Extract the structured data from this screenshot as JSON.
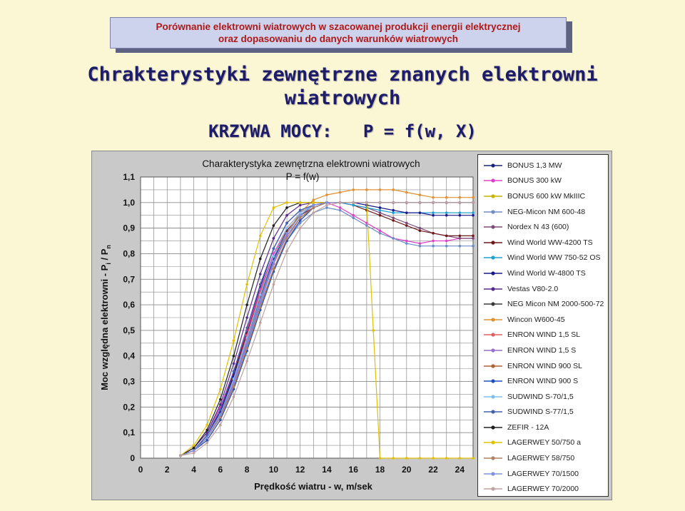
{
  "banner": {
    "line1": "Porównanie elektrowni wiatrowych w szacowanej produkcji energii elektrycznej",
    "line2": "oraz dopasowaniu do danych warunków wiatrowych"
  },
  "heading": {
    "line1": "Chrakterystyki zewnętrzne znanych elektrowni",
    "line2": "wiatrowych"
  },
  "formula": "KRZYWA MOCY:   P = f(w, X)",
  "chart_data": {
    "type": "line",
    "title": "Charakterystyka zewnętrzna elektrowni wiatrowych",
    "subtitle": "P = f(w)",
    "xlabel": "Prędkość wiatru  -  w,    m/sek",
    "ylabel": "Moc względna elektrowni   -   P",
    "ylabel_sub": "i",
    "ylabel_tail": " / P",
    "ylabel_sub2": "n",
    "xlim": [
      0,
      25
    ],
    "ylim": [
      0,
      1.1
    ],
    "xticks": [
      "0",
      "2",
      "4",
      "6",
      "8",
      "10",
      "12",
      "14",
      "16",
      "18",
      "20",
      "22",
      "24"
    ],
    "yticks": [
      "0",
      "0,1",
      "0,2",
      "0,3",
      "0,4",
      "0,5",
      "0,6",
      "0,7",
      "0,8",
      "0,9",
      "1,0",
      "1,1"
    ],
    "grid": true,
    "legend_position": "right",
    "series": [
      {
        "name": "BONUS 1,3 MW",
        "color": "#1a237e",
        "x": [
          3,
          4,
          5,
          6,
          7,
          8,
          9,
          10,
          11,
          12,
          13,
          14,
          15,
          16,
          17,
          18,
          19,
          20,
          21,
          22,
          23,
          24,
          25
        ],
        "y": [
          0.01,
          0.03,
          0.09,
          0.19,
          0.33,
          0.5,
          0.67,
          0.82,
          0.92,
          0.97,
          0.99,
          1.0,
          1.0,
          1.0,
          1.0,
          1.0,
          1.0,
          1.0,
          1.0,
          1.0,
          1.0,
          1.0,
          1.0
        ]
      },
      {
        "name": "BONUS 300 kW",
        "color": "#e040c8",
        "x": [
          3,
          4,
          5,
          6,
          7,
          8,
          9,
          10,
          11,
          12,
          13,
          14,
          15,
          16,
          17,
          18,
          19,
          20,
          21,
          22,
          23,
          24,
          25
        ],
        "y": [
          0.01,
          0.04,
          0.1,
          0.2,
          0.34,
          0.5,
          0.66,
          0.8,
          0.9,
          0.96,
          0.99,
          1.0,
          0.98,
          0.95,
          0.92,
          0.89,
          0.86,
          0.85,
          0.84,
          0.85,
          0.85,
          0.86,
          0.86
        ]
      },
      {
        "name": "BONUS 600 kW MkIIIC",
        "color": "#c8b400",
        "x": [
          3,
          4,
          5,
          6,
          7,
          8,
          9,
          10,
          11,
          12,
          13,
          14,
          15,
          16,
          17,
          18,
          19,
          20,
          21,
          22,
          23,
          24,
          25
        ],
        "y": [
          0.01,
          0.03,
          0.08,
          0.17,
          0.3,
          0.46,
          0.62,
          0.76,
          0.87,
          0.94,
          0.98,
          1.0,
          1.0,
          1.0,
          1.0,
          1.0,
          1.0,
          1.0,
          1.0,
          1.0,
          1.0,
          1.0,
          1.0
        ]
      },
      {
        "name": "NEG-Micon NM 600-48",
        "color": "#6a8cc8",
        "x": [
          3,
          4,
          5,
          6,
          7,
          8,
          9,
          10,
          11,
          12,
          13,
          14,
          15,
          16,
          17,
          18,
          19,
          20,
          21,
          22,
          23,
          24,
          25
        ],
        "y": [
          0.01,
          0.03,
          0.08,
          0.16,
          0.29,
          0.44,
          0.6,
          0.74,
          0.85,
          0.92,
          0.96,
          0.98,
          0.97,
          0.94,
          0.91,
          0.88,
          0.86,
          0.84,
          0.83,
          0.83,
          0.83,
          0.83,
          0.83
        ]
      },
      {
        "name": "Nordex N 43 (600)",
        "color": "#7a4a7a",
        "x": [
          3,
          4,
          5,
          6,
          7,
          8,
          9,
          10,
          11,
          12,
          13,
          14,
          15,
          16,
          17,
          18,
          19,
          20,
          21,
          22,
          23,
          24,
          25
        ],
        "y": [
          0.01,
          0.03,
          0.08,
          0.17,
          0.31,
          0.47,
          0.63,
          0.77,
          0.88,
          0.95,
          0.99,
          1.0,
          1.0,
          0.99,
          0.98,
          0.96,
          0.94,
          0.92,
          0.9,
          0.88,
          0.87,
          0.86,
          0.86
        ]
      },
      {
        "name": "Wind World WW-4200 TS",
        "color": "#6e1a1a",
        "x": [
          3,
          4,
          5,
          6,
          7,
          8,
          9,
          10,
          11,
          12,
          13,
          14,
          15,
          16,
          17,
          18,
          19,
          20,
          21,
          22,
          23,
          24,
          25
        ],
        "y": [
          0.01,
          0.03,
          0.09,
          0.19,
          0.33,
          0.49,
          0.65,
          0.79,
          0.89,
          0.95,
          0.98,
          1.0,
          1.0,
          0.99,
          0.97,
          0.95,
          0.93,
          0.91,
          0.89,
          0.88,
          0.87,
          0.87,
          0.87
        ]
      },
      {
        "name": "Wind World WW 750-52 OS",
        "color": "#20a0d0",
        "x": [
          3,
          4,
          5,
          6,
          7,
          8,
          9,
          10,
          11,
          12,
          13,
          14,
          15,
          16,
          17,
          18,
          19,
          20,
          21,
          22,
          23,
          24,
          25
        ],
        "y": [
          0.01,
          0.03,
          0.08,
          0.17,
          0.3,
          0.46,
          0.62,
          0.76,
          0.87,
          0.94,
          0.98,
          1.0,
          1.0,
          0.99,
          0.98,
          0.97,
          0.96,
          0.96,
          0.96,
          0.96,
          0.96,
          0.96,
          0.96
        ]
      },
      {
        "name": "Wind World W-4800 TS",
        "color": "#1a1a8c",
        "x": [
          3,
          4,
          5,
          6,
          7,
          8,
          9,
          10,
          11,
          12,
          13,
          14,
          15,
          16,
          17,
          18,
          19,
          20,
          21,
          22,
          23,
          24,
          25
        ],
        "y": [
          0.01,
          0.03,
          0.09,
          0.18,
          0.32,
          0.48,
          0.64,
          0.78,
          0.88,
          0.95,
          0.99,
          1.0,
          1.0,
          1.0,
          0.99,
          0.98,
          0.97,
          0.96,
          0.96,
          0.95,
          0.95,
          0.95,
          0.95
        ]
      },
      {
        "name": "Vestas V80-2.0",
        "color": "#5a2a8a",
        "x": [
          3,
          4,
          5,
          6,
          7,
          8,
          9,
          10,
          11,
          12,
          13,
          14,
          15,
          16,
          17,
          18,
          19,
          20,
          21,
          22,
          23,
          24,
          25
        ],
        "y": [
          0.01,
          0.04,
          0.1,
          0.21,
          0.37,
          0.55,
          0.72,
          0.86,
          0.95,
          0.99,
          1.0,
          1.0,
          1.0,
          1.0,
          1.0,
          1.0,
          1.0,
          1.0,
          1.0,
          1.0,
          1.0,
          1.0,
          1.0
        ]
      },
      {
        "name": "NEG Micon NM 2000-500-72",
        "color": "#3a3a3a",
        "x": [
          3,
          4,
          5,
          6,
          7,
          8,
          9,
          10,
          11,
          12,
          13,
          14,
          15,
          16,
          17,
          18,
          19,
          20,
          21,
          22,
          23,
          24,
          25
        ],
        "y": [
          0.01,
          0.03,
          0.08,
          0.17,
          0.3,
          0.46,
          0.62,
          0.77,
          0.88,
          0.95,
          0.99,
          1.0,
          1.0,
          1.0,
          1.0,
          1.0,
          1.0,
          1.0,
          1.0,
          1.0,
          1.0,
          1.0,
          1.0
        ]
      },
      {
        "name": "Wincon W600-45",
        "color": "#e09030",
        "x": [
          3,
          4,
          5,
          6,
          7,
          8,
          9,
          10,
          11,
          12,
          13,
          14,
          15,
          16,
          17,
          18,
          19,
          20,
          21,
          22,
          23,
          24,
          25
        ],
        "y": [
          0.01,
          0.03,
          0.08,
          0.16,
          0.29,
          0.45,
          0.61,
          0.76,
          0.88,
          0.96,
          1.01,
          1.03,
          1.04,
          1.05,
          1.05,
          1.05,
          1.05,
          1.04,
          1.03,
          1.02,
          1.02,
          1.02,
          1.02
        ]
      },
      {
        "name": "ENRON WIND 1,5 SL",
        "color": "#e06060",
        "x": [
          3,
          4,
          5,
          6,
          7,
          8,
          9,
          10,
          11,
          12,
          13,
          14,
          15,
          16,
          17,
          18,
          19,
          20,
          21,
          22,
          23,
          24,
          25
        ],
        "y": [
          0.01,
          0.03,
          0.08,
          0.17,
          0.31,
          0.48,
          0.65,
          0.79,
          0.9,
          0.96,
          0.99,
          1.0,
          1.0,
          1.0,
          1.0,
          1.0,
          1.0,
          1.0,
          1.0,
          1.0,
          1.0,
          1.0,
          1.0
        ]
      },
      {
        "name": "ENRON WIND 1,5 S",
        "color": "#9a70d0",
        "x": [
          3,
          4,
          5,
          6,
          7,
          8,
          9,
          10,
          11,
          12,
          13,
          14,
          15,
          16,
          17,
          18,
          19,
          20,
          21,
          22,
          23,
          24,
          25
        ],
        "y": [
          0.01,
          0.03,
          0.08,
          0.16,
          0.29,
          0.45,
          0.61,
          0.76,
          0.87,
          0.94,
          0.98,
          1.0,
          1.0,
          1.0,
          1.0,
          1.0,
          1.0,
          1.0,
          1.0,
          1.0,
          1.0,
          1.0,
          1.0
        ]
      },
      {
        "name": "ENRON WIND 900 SL",
        "color": "#b06030",
        "x": [
          3,
          4,
          5,
          6,
          7,
          8,
          9,
          10,
          11,
          12,
          13,
          14,
          15,
          16,
          17,
          18,
          19,
          20,
          21,
          22,
          23,
          24,
          25
        ],
        "y": [
          0.01,
          0.03,
          0.07,
          0.15,
          0.27,
          0.42,
          0.58,
          0.73,
          0.85,
          0.93,
          0.98,
          1.0,
          1.0,
          1.0,
          1.0,
          1.0,
          1.0,
          1.0,
          1.0,
          1.0,
          1.0,
          1.0,
          1.0
        ]
      },
      {
        "name": "ENRON WIND 900 S",
        "color": "#2050c0",
        "x": [
          3,
          4,
          5,
          6,
          7,
          8,
          9,
          10,
          11,
          12,
          13,
          14,
          15,
          16,
          17,
          18,
          19,
          20,
          21,
          22,
          23,
          24,
          25
        ],
        "y": [
          0.01,
          0.03,
          0.07,
          0.15,
          0.27,
          0.42,
          0.58,
          0.73,
          0.85,
          0.93,
          0.98,
          1.0,
          1.0,
          1.0,
          1.0,
          1.0,
          1.0,
          1.0,
          1.0,
          1.0,
          1.0,
          1.0,
          1.0
        ]
      },
      {
        "name": "SUDWIND S-70/1,5",
        "color": "#80c0f0",
        "x": [
          3,
          4,
          5,
          6,
          7,
          8,
          9,
          10,
          11,
          12,
          13,
          14,
          15,
          16,
          17,
          18,
          19,
          20,
          21,
          22,
          23,
          24,
          25
        ],
        "y": [
          0.01,
          0.03,
          0.08,
          0.17,
          0.31,
          0.47,
          0.64,
          0.79,
          0.9,
          0.96,
          0.99,
          1.0,
          1.0,
          1.0,
          1.0,
          1.0,
          1.0,
          1.0,
          1.0,
          1.0,
          1.0,
          1.0,
          1.0
        ]
      },
      {
        "name": "SUDWIND S-77/1,5",
        "color": "#4060b0",
        "x": [
          3,
          4,
          5,
          6,
          7,
          8,
          9,
          10,
          11,
          12,
          13,
          14,
          15,
          16,
          17,
          18,
          19,
          20,
          21,
          22,
          23,
          24,
          25
        ],
        "y": [
          0.01,
          0.03,
          0.09,
          0.19,
          0.34,
          0.51,
          0.68,
          0.82,
          0.92,
          0.97,
          0.99,
          1.0,
          1.0,
          1.0,
          1.0,
          1.0,
          1.0,
          1.0,
          1.0,
          1.0,
          1.0,
          1.0,
          1.0
        ]
      },
      {
        "name": "ZEFIR - 12A",
        "color": "#202020",
        "x": [
          3,
          4,
          5,
          6,
          7,
          8,
          9,
          10,
          11,
          12,
          13,
          14,
          15,
          16,
          17,
          18,
          19,
          20,
          21,
          22,
          23,
          24,
          25
        ],
        "y": [
          0.01,
          0.04,
          0.11,
          0.23,
          0.4,
          0.6,
          0.78,
          0.91,
          0.98,
          1.0,
          1.0,
          1.0,
          1.0,
          1.0,
          1.0,
          1.0,
          1.0,
          1.0,
          1.0,
          1.0,
          1.0,
          1.0,
          1.0
        ]
      },
      {
        "name": "LAGERWEY 50/750 a",
        "color": "#e0c000",
        "x": [
          3,
          4,
          5,
          6,
          7,
          8,
          9,
          10,
          11,
          12,
          13,
          14,
          15,
          16,
          17,
          17.5,
          18,
          19,
          20,
          21,
          22,
          23,
          24,
          25
        ],
        "y": [
          0.01,
          0.05,
          0.13,
          0.27,
          0.46,
          0.68,
          0.87,
          0.98,
          1.0,
          1.0,
          1.0,
          1.0,
          1.0,
          1.0,
          1.0,
          0.5,
          0.0,
          0.0,
          0.0,
          0.0,
          0.0,
          0.0,
          0.0,
          0.0
        ]
      },
      {
        "name": "LAGERWEY 58/750",
        "color": "#b08060",
        "x": [
          3,
          4,
          5,
          6,
          7,
          8,
          9,
          10,
          11,
          12,
          13,
          14,
          15,
          16,
          17,
          18,
          19,
          20,
          21,
          22,
          23,
          24,
          25
        ],
        "y": [
          0.01,
          0.03,
          0.08,
          0.16,
          0.28,
          0.43,
          0.59,
          0.74,
          0.86,
          0.94,
          0.98,
          1.0,
          1.0,
          1.0,
          1.0,
          1.0,
          1.0,
          1.0,
          1.0,
          1.0,
          1.0,
          1.0,
          1.0
        ]
      },
      {
        "name": "LAGERWEY 70/1500",
        "color": "#8090e0",
        "x": [
          3,
          4,
          5,
          6,
          7,
          8,
          9,
          10,
          11,
          12,
          13,
          14,
          15,
          16,
          17,
          18,
          19,
          20,
          21,
          22,
          23,
          24,
          25
        ],
        "y": [
          0.01,
          0.03,
          0.08,
          0.17,
          0.3,
          0.46,
          0.62,
          0.77,
          0.88,
          0.95,
          0.99,
          1.0,
          1.0,
          1.0,
          1.0,
          1.0,
          1.0,
          1.0,
          1.0,
          1.0,
          1.0,
          1.0,
          1.0
        ]
      },
      {
        "name": "LAGERWEY 70/2000",
        "color": "#c0a0a0",
        "x": [
          3,
          4,
          5,
          6,
          7,
          8,
          9,
          10,
          11,
          12,
          13,
          14,
          15,
          16,
          17,
          18,
          19,
          20,
          21,
          22,
          23,
          24,
          25
        ],
        "y": [
          0.01,
          0.02,
          0.06,
          0.13,
          0.24,
          0.38,
          0.53,
          0.68,
          0.81,
          0.9,
          0.96,
          0.99,
          1.0,
          1.0,
          1.0,
          1.0,
          1.0,
          1.0,
          1.0,
          1.0,
          1.0,
          1.0,
          1.0
        ]
      }
    ]
  }
}
